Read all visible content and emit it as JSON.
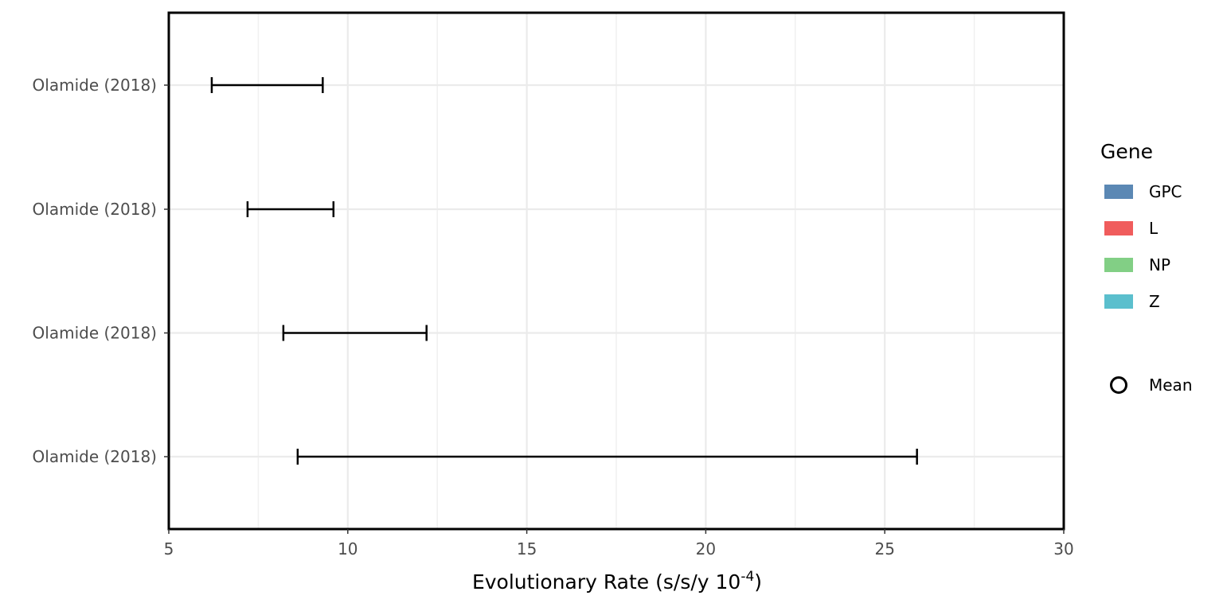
{
  "chart_data": {
    "type": "errorbar",
    "xlabel_main": "Evolutionary Rate ",
    "xlabel_unit": "(s/s/y 10",
    "xlabel_sup": "-4",
    "xlabel_close": ")",
    "xlim": [
      5,
      30
    ],
    "xticks": [
      5,
      10,
      15,
      20,
      25,
      30
    ],
    "x_minor_ticks": [
      7.5,
      12.5,
      17.5,
      22.5,
      27.5
    ],
    "grid": true,
    "categories": [
      "Olamide (2018)",
      "Olamide (2018)",
      "Olamide (2018)",
      "Olamide (2018)"
    ],
    "intervals": [
      {
        "label": "Olamide (2018)",
        "low": 6.2,
        "high": 9.3
      },
      {
        "label": "Olamide (2018)",
        "low": 7.2,
        "high": 9.6
      },
      {
        "label": "Olamide (2018)",
        "low": 8.2,
        "high": 12.2
      },
      {
        "label": "Olamide (2018)",
        "low": 8.6,
        "high": 25.9
      }
    ],
    "legend": {
      "position": "right",
      "title": "Gene",
      "items": [
        {
          "label": "GPC",
          "color": "#5b88b4"
        },
        {
          "label": "L",
          "color": "#f05c5c"
        },
        {
          "label": "NP",
          "color": "#82cf85"
        },
        {
          "label": "Z",
          "color": "#5bbfcd"
        }
      ],
      "mean_label": "Mean"
    }
  }
}
